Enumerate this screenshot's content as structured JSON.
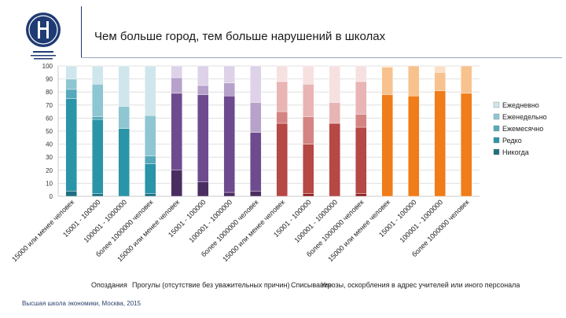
{
  "header": {
    "title": "Чем больше город, тем больше нарушений в школах",
    "logo_icon": "hse-university-logo-icon",
    "footer": "Высшая школа экономики, Москва, 2015"
  },
  "chart_data": {
    "type": "bar",
    "stacked": true,
    "ylim": [
      0,
      100
    ],
    "yticks": [
      0,
      10,
      20,
      30,
      40,
      50,
      60,
      70,
      80,
      90,
      100
    ],
    "grid": true,
    "legend_position": "right",
    "categories": [
      "15000 или менее человек",
      "15001 - 100000",
      "100001 - 1000000",
      "более 1000000 человек",
      "15000 или менее человек",
      "15001 - 100000",
      "100001 - 1000000",
      "более 1000000 человек",
      "15000 или менее человек",
      "15001 - 100000",
      "100001 - 1000000",
      "более 1000000 человек",
      "15000 или менее человек",
      "15001 - 100000",
      "100001 - 1000000",
      "более 1000000 человек"
    ],
    "groups": [
      {
        "label": "Опоздания",
        "colors": [
          "#1f6f80",
          "#2a94a8",
          "#55a9bb",
          "#8ec6d2",
          "#cfe6ec"
        ]
      },
      {
        "label": "Прогулы (отсутствие без уважительных причин)",
        "colors": [
          "#4a2e61",
          "#6e4b8f",
          "#8f72ab",
          "#b6a2cb",
          "#ddd2e8"
        ]
      },
      {
        "label": "Списывание",
        "colors": [
          "#8e2424",
          "#b64845",
          "#d48583",
          "#e8b5b4",
          "#f6e0e0"
        ]
      },
      {
        "label": "Угрозы, оскорбления в адрес учителей или иного персонала",
        "colors": [
          "#b23c00",
          "#f07c1a",
          "#f5a056",
          "#f8c28e",
          "#fbe0c7"
        ]
      }
    ],
    "series": [
      {
        "name": "Никогда",
        "values": [
          4,
          2,
          0,
          2,
          20,
          11,
          3,
          4,
          0,
          2,
          0,
          2,
          0,
          0,
          0,
          0
        ]
      },
      {
        "name": "Редко",
        "values": [
          71,
          57,
          52,
          23,
          59,
          67,
          74,
          45,
          56,
          38,
          56,
          51,
          78,
          77,
          81,
          79
        ]
      },
      {
        "name": "Ежемесячно",
        "values": [
          7,
          2,
          0,
          6,
          0,
          0,
          0,
          0,
          9,
          21,
          0,
          10,
          0,
          0,
          0,
          0
        ]
      },
      {
        "name": "Еженедельно",
        "values": [
          8,
          25,
          17,
          31,
          12,
          7,
          10,
          23,
          23,
          25,
          16,
          25,
          21,
          23,
          14,
          21
        ]
      },
      {
        "name": "Ежедневно",
        "values": [
          10,
          14,
          31,
          38,
          9,
          15,
          13,
          28,
          12,
          14,
          28,
          12,
          1,
          0,
          5,
          0
        ]
      }
    ],
    "legend": [
      "Ежедневно",
      "Еженедельно",
      "Ежемесячно",
      "Редко",
      "Никогда"
    ],
    "legend_colors": [
      "#cfe6ec",
      "#8ec6d2",
      "#55a9bb",
      "#2a94a8",
      "#1f6f80"
    ]
  }
}
